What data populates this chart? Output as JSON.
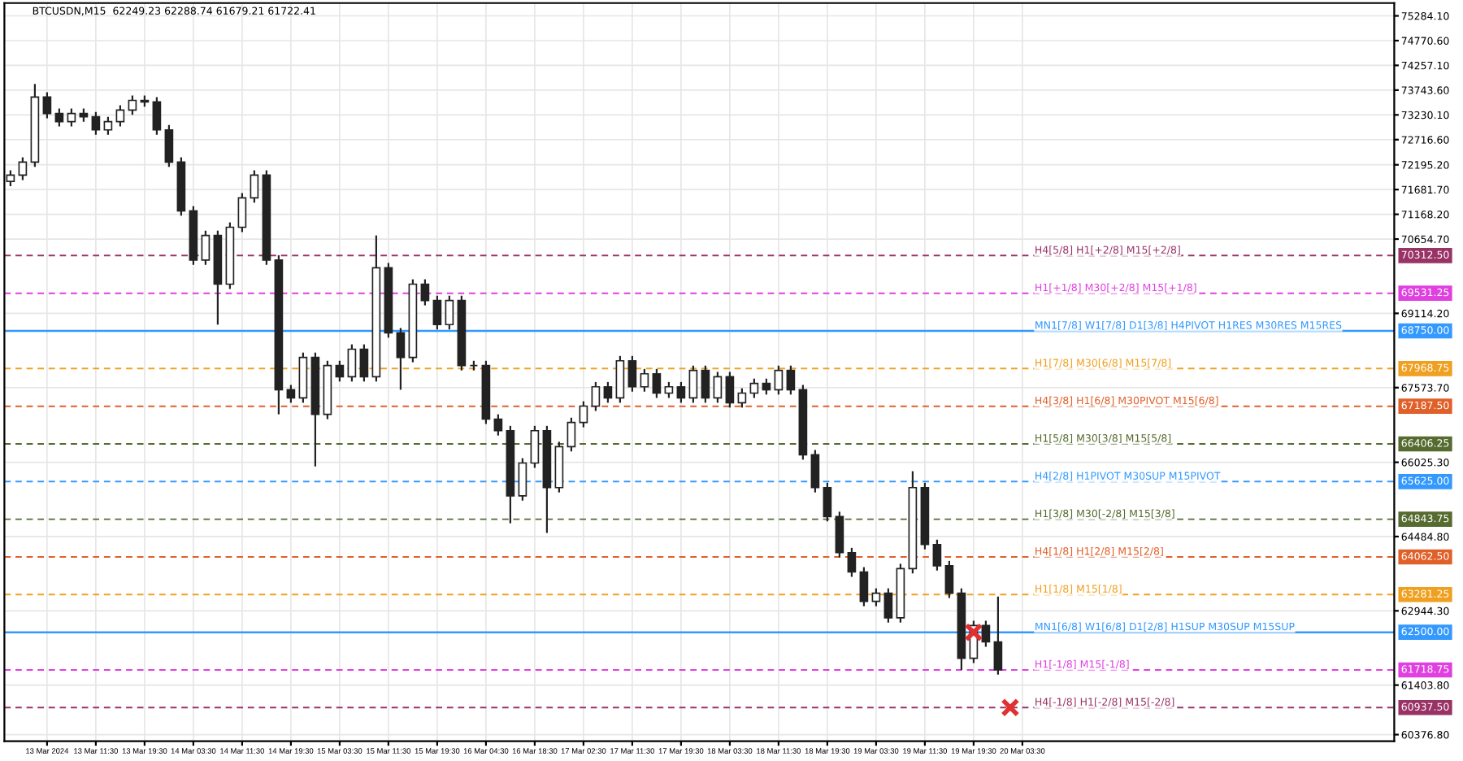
{
  "chart_data": {
    "type": "candlestick",
    "annotations": [
      "BTCUSDN,M15  62249.23 62288.74 61679.21 61722.41",
      "70312.50",
      "69531.25",
      "68750.00",
      "67968.75",
      "67187.50",
      "66406.25",
      "65625.00",
      "64843.75",
      "64062.50",
      "63281.25",
      "62500.00",
      "61718.75",
      "60937.50"
    ],
    "categories": [
      null,
      null,
      null,
      "13 Mar 2024",
      null,
      null,
      null,
      "13 Mar 11:30",
      null,
      null,
      null,
      "13 Mar 19:30",
      null,
      null,
      null,
      "14 Mar 03:30",
      null,
      null,
      null,
      "14 Mar 11:30",
      null,
      null,
      null,
      "14 Mar 19:30",
      null,
      null,
      null,
      "15 Mar 03:30",
      null,
      null,
      null,
      "15 Mar 11:30",
      null,
      null,
      null,
      "15 Mar 19:30",
      null,
      null,
      null,
      "16 Mar 04:30",
      null,
      null,
      null,
      "16 Mar 18:30",
      null,
      null,
      null,
      "17 Mar 02:30",
      null,
      null,
      null,
      "17 Mar 11:30",
      null,
      null,
      null,
      "17 Mar 19:30",
      null,
      null,
      null,
      "18 Mar 03:30",
      null,
      null,
      null,
      "18 Mar 11:30",
      null,
      null,
      null,
      "18 Mar 19:30",
      null,
      null,
      null,
      "19 Mar 03:30",
      null,
      null,
      null,
      "19 Mar 11:30",
      null,
      null,
      null,
      "19 Mar 19:30",
      null,
      null,
      null,
      "20 Mar 03:30",
      null,
      null,
      null,
      null,
      null,
      null,
      null,
      null,
      null,
      null,
      null,
      null,
      null,
      null,
      null,
      null,
      null,
      null,
      null,
      null,
      null,
      null,
      null,
      null,
      null,
      null,
      null,
      null,
      null,
      null
    ],
    "ohlc": [
      [
        71850,
        72080,
        71750,
        71980
      ],
      [
        71980,
        72350,
        71880,
        72250
      ],
      [
        72250,
        73870,
        72150,
        73600
      ],
      [
        73600,
        73700,
        73160,
        73260
      ],
      [
        73260,
        73360,
        72990,
        73090
      ],
      [
        73090,
        73360,
        72990,
        73260
      ],
      [
        73260,
        73360,
        73090,
        73190
      ],
      [
        73190,
        73290,
        72820,
        72920
      ],
      [
        72920,
        73190,
        72820,
        73090
      ],
      [
        73090,
        73430,
        72990,
        73330
      ],
      [
        73330,
        73630,
        73230,
        73530
      ],
      [
        73530,
        73630,
        73400,
        73500
      ],
      [
        73500,
        73600,
        72820,
        72920
      ],
      [
        72920,
        73020,
        72150,
        72250
      ],
      [
        72250,
        72350,
        71140,
        71240
      ],
      [
        71240,
        71340,
        70120,
        70220
      ],
      [
        70220,
        70830,
        70120,
        70730
      ],
      [
        70730,
        70830,
        68880,
        69720
      ],
      [
        69720,
        71000,
        69620,
        70900
      ],
      [
        70900,
        71610,
        70800,
        71510
      ],
      [
        71510,
        72080,
        71410,
        71980
      ],
      [
        71980,
        72080,
        70120,
        70220
      ],
      [
        70220,
        70320,
        67020,
        67530
      ],
      [
        67530,
        67630,
        67260,
        67360
      ],
      [
        67360,
        68300,
        67260,
        68200
      ],
      [
        68200,
        68300,
        65940,
        67020
      ],
      [
        67020,
        68130,
        66920,
        68030
      ],
      [
        68030,
        68130,
        67700,
        67800
      ],
      [
        67800,
        68470,
        67700,
        68370
      ],
      [
        68370,
        68470,
        67700,
        67800
      ],
      [
        67800,
        70730,
        67700,
        70060
      ],
      [
        70060,
        70160,
        68610,
        68710
      ],
      [
        68710,
        68810,
        67530,
        68200
      ],
      [
        68200,
        69820,
        68100,
        69720
      ],
      [
        69720,
        69820,
        69280,
        69380
      ],
      [
        69380,
        69480,
        68780,
        68880
      ],
      [
        68880,
        69480,
        68780,
        69380
      ],
      [
        69380,
        69480,
        67930,
        68030
      ],
      [
        68030,
        68130,
        67930,
        68030
      ],
      [
        68030,
        68130,
        66820,
        66920
      ],
      [
        66920,
        67020,
        66580,
        66680
      ],
      [
        66680,
        66780,
        64760,
        65330
      ],
      [
        65330,
        66110,
        65230,
        66010
      ],
      [
        66010,
        66780,
        65910,
        66680
      ],
      [
        66680,
        66780,
        64560,
        65500
      ],
      [
        65500,
        66450,
        65400,
        66350
      ],
      [
        66350,
        66950,
        66250,
        66850
      ],
      [
        66850,
        67290,
        66750,
        67190
      ],
      [
        67190,
        67690,
        67090,
        67590
      ],
      [
        67590,
        67690,
        67260,
        67360
      ],
      [
        67360,
        68230,
        67260,
        68130
      ],
      [
        68130,
        68230,
        67490,
        67590
      ],
      [
        67590,
        67960,
        67490,
        67860
      ],
      [
        67860,
        67960,
        67360,
        67460
      ],
      [
        67460,
        67690,
        67360,
        67590
      ],
      [
        67590,
        67690,
        67260,
        67360
      ],
      [
        67360,
        68030,
        67260,
        67930
      ],
      [
        67930,
        68030,
        67260,
        67360
      ],
      [
        67360,
        67900,
        67260,
        67800
      ],
      [
        67800,
        67900,
        67160,
        67260
      ],
      [
        67260,
        67560,
        67160,
        67460
      ],
      [
        67460,
        67760,
        67360,
        67660
      ],
      [
        67660,
        67760,
        67430,
        67530
      ],
      [
        67530,
        68030,
        67430,
        67930
      ],
      [
        67930,
        68030,
        67430,
        67530
      ],
      [
        67530,
        67630,
        66080,
        66180
      ],
      [
        66180,
        66280,
        65400,
        65500
      ],
      [
        65500,
        65600,
        64800,
        64900
      ],
      [
        64900,
        65000,
        64050,
        64150
      ],
      [
        64150,
        64250,
        63650,
        63750
      ],
      [
        63750,
        63850,
        63040,
        63140
      ],
      [
        63140,
        63410,
        63040,
        63310
      ],
      [
        63310,
        63410,
        62700,
        62800
      ],
      [
        62800,
        63920,
        62700,
        63820
      ],
      [
        63820,
        65840,
        63720,
        65500
      ],
      [
        65500,
        65600,
        64220,
        64320
      ],
      [
        64320,
        64420,
        63780,
        63880
      ],
      [
        63880,
        63980,
        63210,
        63310
      ],
      [
        63310,
        63410,
        61720,
        61960
      ],
      [
        61960,
        62740,
        61860,
        62640
      ],
      [
        62640,
        62740,
        62200,
        62300
      ],
      [
        62300,
        63240,
        61620,
        61720
      ],
      null,
      null,
      null,
      null,
      null,
      null,
      null,
      null,
      null,
      null,
      null,
      null,
      null,
      null,
      null,
      null,
      null,
      null,
      null,
      null,
      null,
      null,
      null,
      null,
      null,
      null,
      null,
      null,
      null,
      null,
      null,
      null
    ],
    "series": [
      {
        "type": "scatter",
        "marker": "cross",
        "color": "#e03030",
        "values": [
          null,
          null,
          null,
          null,
          null,
          null,
          null,
          null,
          null,
          null,
          null,
          null,
          null,
          null,
          null,
          null,
          null,
          null,
          null,
          null,
          null,
          null,
          null,
          null,
          null,
          null,
          null,
          null,
          null,
          null,
          null,
          null,
          null,
          null,
          null,
          null,
          null,
          null,
          null,
          null,
          null,
          null,
          null,
          null,
          null,
          null,
          null,
          null,
          null,
          null,
          null,
          null,
          null,
          null,
          null,
          null,
          null,
          null,
          null,
          null,
          null,
          null,
          null,
          null,
          null,
          null,
          null,
          null,
          null,
          null,
          null,
          null,
          null,
          null,
          null,
          null,
          null,
          null,
          null,
          62500,
          null,
          null,
          60940,
          null,
          null,
          null,
          null,
          null,
          null,
          null,
          null,
          null,
          null,
          null,
          null,
          null,
          null,
          null,
          null,
          null,
          null,
          null,
          null,
          null,
          null,
          null,
          null,
          null,
          null,
          null,
          null,
          null,
          null,
          null
        ]
      }
    ],
    "ylim": [
      60240,
      75550
    ],
    "yticks": [
      {
        "value": 75284.1,
        "label": "75284.10"
      },
      {
        "value": 74770.6,
        "label": "74770.60"
      },
      {
        "value": 74257.1,
        "label": "74257.10"
      },
      {
        "value": 73743.6,
        "label": "73743.60"
      },
      {
        "value": 73230.1,
        "label": "73230.10"
      },
      {
        "value": 72716.6,
        "label": "72716.60"
      },
      {
        "value": 72195.2,
        "label": "72195.20"
      },
      {
        "value": 71681.7,
        "label": "71681.70"
      },
      {
        "value": 71168.2,
        "label": "71168.20"
      },
      {
        "value": 70654.7,
        "label": "70654.70"
      },
      {
        "value": 69114.2,
        "label": "69114.20"
      },
      {
        "value": 67573.7,
        "label": "67573.70"
      },
      {
        "value": 66025.3,
        "label": "66025.30"
      },
      {
        "value": 64484.8,
        "label": "64484.80"
      },
      {
        "value": 62944.3,
        "label": "62944.30"
      },
      {
        "value": 61403.8,
        "label": "61403.80"
      },
      {
        "value": 60376.8,
        "label": "60376.80"
      }
    ],
    "grid": true,
    "ref_lines": [
      {
        "axis": "y",
        "value": 70312.5,
        "label": "H4[5/8] H1[+2/8] M15[+2/8]",
        "color": "#993366",
        "line_style": "dashed"
      },
      {
        "axis": "y",
        "value": 69531.25,
        "label": "H1[+1/8] M30[+2/8] M15[+1/8]",
        "color": "#e040e0",
        "line_style": "dashed"
      },
      {
        "axis": "y",
        "value": 68750,
        "label": "MN1[7/8] W1[7/8] D1[3/8] H4PIVOT H1RES M30RES M15RES",
        "color": "#3399ff",
        "line_style": "solid"
      },
      {
        "axis": "y",
        "value": 67968.75,
        "label": "H1[7/8] M30[6/8] M15[7/8]",
        "color": "#f0a020",
        "line_style": "dashed"
      },
      {
        "axis": "y",
        "value": 67187.5,
        "label": "H4[3/8] H1[6/8] M30PIVOT M15[6/8]",
        "color": "#e0602a",
        "line_style": "dashed"
      },
      {
        "axis": "y",
        "value": 66406.25,
        "label": "H1[5/8] M30[3/8] M15[5/8]",
        "color": "#556b2f",
        "line_style": "dashed"
      },
      {
        "axis": "y",
        "value": 65625,
        "label": "H4[2/8] H1PIVOT M30SUP M15PIVOT",
        "color": "#3399ff",
        "line_style": "dashed"
      },
      {
        "axis": "y",
        "value": 64843.75,
        "label": "H1[3/8] M30[-2/8] M15[3/8]",
        "color": "#556b2f",
        "line_style": "dashed"
      },
      {
        "axis": "y",
        "value": 64062.5,
        "label": "H4[1/8] H1[2/8] M15[2/8]",
        "color": "#e0602a",
        "line_style": "dashed"
      },
      {
        "axis": "y",
        "value": 63281.25,
        "label": "H1[1/8] M15[1/8]",
        "color": "#f0a020",
        "line_style": "dashed"
      },
      {
        "axis": "y",
        "value": 62500,
        "label": "MN1[6/8] W1[6/8] D1[2/8] H1SUP M30SUP M15SUP",
        "color": "#3399ff",
        "line_style": "solid"
      },
      {
        "axis": "y",
        "value": 61718.75,
        "label": "H1[-1/8] M15[-1/8]",
        "color": "#e040e0",
        "line_style": "dashed"
      },
      {
        "axis": "y",
        "value": 60937.5,
        "label": "H4[-1/8] H1[-2/8] M15[-2/8]",
        "color": "#993366",
        "line_style": "dashed"
      }
    ]
  }
}
